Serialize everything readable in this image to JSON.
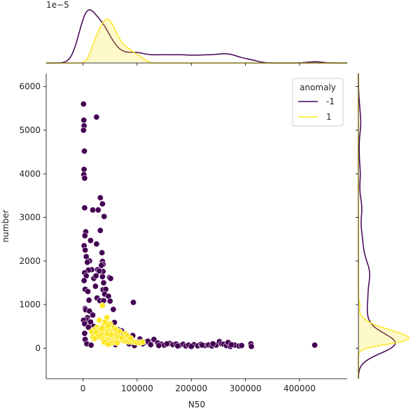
{
  "chart_data": {
    "type": "scatter",
    "title": "",
    "xlabel": "N50",
    "ylabel": "number",
    "xlim": [
      -68000,
      488000
    ],
    "ylim": [
      -700,
      6300
    ],
    "x_ticks": [
      0,
      100000,
      200000,
      300000,
      400000
    ],
    "x_tick_labels": [
      "0",
      "100000",
      "200000",
      "300000",
      "400000"
    ],
    "y_ticks": [
      0,
      1000,
      2000,
      3000,
      4000,
      5000,
      6000
    ],
    "y_tick_labels": [
      "0",
      "1000",
      "2000",
      "3000",
      "4000",
      "5000",
      "6000"
    ],
    "top_marginal_offset_label": "1e−5",
    "legend": {
      "title": "anomaly",
      "placement": "top-right",
      "entries": [
        {
          "label": "-1",
          "color": "#440154"
        },
        {
          "label": "1",
          "color": "#fde725"
        }
      ]
    },
    "series": [
      {
        "name": "-1",
        "color": "#440154",
        "points": [
          [
            1000,
            5600
          ],
          [
            1500,
            5230
          ],
          [
            2000,
            5100
          ],
          [
            1000,
            5000
          ],
          [
            25000,
            5300
          ],
          [
            2500,
            4520
          ],
          [
            2000,
            4100
          ],
          [
            1500,
            3980
          ],
          [
            3000,
            3900
          ],
          [
            32000,
            3450
          ],
          [
            36000,
            3310
          ],
          [
            3000,
            3220
          ],
          [
            18000,
            3170
          ],
          [
            28000,
            3170
          ],
          [
            39000,
            3020
          ],
          [
            32000,
            2700
          ],
          [
            5000,
            2670
          ],
          [
            3500,
            2580
          ],
          [
            2000,
            2350
          ],
          [
            4000,
            2250
          ],
          [
            14000,
            2470
          ],
          [
            25000,
            2390
          ],
          [
            6000,
            2100
          ],
          [
            12000,
            2000
          ],
          [
            8000,
            1970
          ],
          [
            36000,
            1990
          ],
          [
            35000,
            2190
          ],
          [
            37000,
            1920
          ],
          [
            34000,
            1900
          ],
          [
            16000,
            1800
          ],
          [
            10000,
            1790
          ],
          [
            27000,
            1800
          ],
          [
            37000,
            1760
          ],
          [
            30000,
            1770
          ],
          [
            20000,
            1600
          ],
          [
            24000,
            1660
          ],
          [
            36000,
            1640
          ],
          [
            38000,
            1500
          ],
          [
            49000,
            1620
          ],
          [
            51000,
            1600
          ],
          [
            3000,
            1730
          ],
          [
            6000,
            1660
          ],
          [
            2000,
            1550
          ],
          [
            4000,
            1350
          ],
          [
            9000,
            1300
          ],
          [
            23000,
            1420
          ],
          [
            37000,
            1340
          ],
          [
            42000,
            1350
          ],
          [
            40000,
            1240
          ],
          [
            47000,
            1190
          ],
          [
            50000,
            1080
          ],
          [
            56000,
            890
          ],
          [
            26000,
            1150
          ],
          [
            31000,
            1090
          ],
          [
            38000,
            1090
          ],
          [
            11000,
            1100
          ],
          [
            93000,
            1050
          ],
          [
            4000,
            910
          ],
          [
            5000,
            880
          ],
          [
            12000,
            850
          ],
          [
            18000,
            760
          ],
          [
            8000,
            700
          ],
          [
            6000,
            650
          ],
          [
            1000,
            640
          ],
          [
            14000,
            600
          ],
          [
            3000,
            560
          ],
          [
            20000,
            500
          ],
          [
            10000,
            480
          ],
          [
            58000,
            590
          ],
          [
            64000,
            430
          ],
          [
            71000,
            400
          ],
          [
            68000,
            350
          ],
          [
            92000,
            290
          ],
          [
            3000,
            340
          ],
          [
            4000,
            200
          ],
          [
            7000,
            100
          ],
          [
            15000,
            70
          ],
          [
            80000,
            270
          ],
          [
            105000,
            210
          ],
          [
            115000,
            140
          ],
          [
            120000,
            160
          ],
          [
            131000,
            200
          ],
          [
            138000,
            120
          ],
          [
            145000,
            90
          ],
          [
            150000,
            70
          ],
          [
            160000,
            110
          ],
          [
            166000,
            80
          ],
          [
            172000,
            95
          ],
          [
            178000,
            60
          ],
          [
            185000,
            90
          ],
          [
            190000,
            50
          ],
          [
            195000,
            70
          ],
          [
            205000,
            80
          ],
          [
            212000,
            55
          ],
          [
            218000,
            90
          ],
          [
            225000,
            60
          ],
          [
            232000,
            75
          ],
          [
            238000,
            50
          ],
          [
            246000,
            70
          ],
          [
            252000,
            150
          ],
          [
            256000,
            100
          ],
          [
            260000,
            90
          ],
          [
            265000,
            60
          ],
          [
            268000,
            130
          ],
          [
            272000,
            40
          ],
          [
            280000,
            70
          ],
          [
            288000,
            50
          ],
          [
            293000,
            60
          ],
          [
            310000,
            100
          ],
          [
            311000,
            40
          ],
          [
            428000,
            70
          ],
          [
            98000,
            130
          ],
          [
            102000,
            150
          ],
          [
            110000,
            100
          ],
          [
            125000,
            80
          ],
          [
            140000,
            60
          ],
          [
            155000,
            100
          ],
          [
            175000,
            50
          ],
          [
            200000,
            40
          ],
          [
            220000,
            70
          ],
          [
            240000,
            100
          ],
          [
            274000,
            80
          ],
          [
            40000,
            230
          ],
          [
            45000,
            150
          ],
          [
            52000,
            120
          ],
          [
            60000,
            80
          ],
          [
            75000,
            200
          ],
          [
            85000,
            100
          ],
          [
            95000,
            60
          ]
        ]
      },
      {
        "name": "1",
        "color": "#fde725",
        "points": [
          [
            36000,
            980
          ],
          [
            44000,
            700
          ],
          [
            30000,
            640
          ],
          [
            50000,
            560
          ],
          [
            38000,
            520
          ],
          [
            26000,
            480
          ],
          [
            20000,
            420
          ],
          [
            16000,
            380
          ],
          [
            42000,
            440
          ],
          [
            48000,
            400
          ],
          [
            55000,
            380
          ],
          [
            60000,
            350
          ],
          [
            34000,
            360
          ],
          [
            28000,
            330
          ],
          [
            22000,
            300
          ],
          [
            18000,
            260
          ],
          [
            40000,
            280
          ],
          [
            46000,
            250
          ],
          [
            52000,
            230
          ],
          [
            58000,
            200
          ],
          [
            64000,
            210
          ],
          [
            70000,
            190
          ],
          [
            75000,
            170
          ],
          [
            80000,
            160
          ],
          [
            85000,
            150
          ],
          [
            90000,
            150
          ],
          [
            95000,
            140
          ],
          [
            100000,
            130
          ],
          [
            105000,
            120
          ],
          [
            110000,
            140
          ],
          [
            33000,
            250
          ],
          [
            37000,
            220
          ],
          [
            44000,
            200
          ],
          [
            49000,
            180
          ],
          [
            54000,
            160
          ],
          [
            62000,
            300
          ],
          [
            66000,
            260
          ],
          [
            72000,
            240
          ],
          [
            30000,
            420
          ],
          [
            24000,
            360
          ],
          [
            45000,
            330
          ],
          [
            52000,
            310
          ],
          [
            41000,
            600
          ],
          [
            47000,
            520
          ],
          [
            35000,
            450
          ],
          [
            57000,
            470
          ],
          [
            61000,
            430
          ],
          [
            68000,
            380
          ],
          [
            78000,
            330
          ],
          [
            82000,
            280
          ],
          [
            88000,
            230
          ],
          [
            43000,
            160
          ],
          [
            39000,
            140
          ],
          [
            56000,
            130
          ],
          [
            63000,
            120
          ],
          [
            50000,
            100
          ],
          [
            46000,
            90
          ],
          [
            32000,
            300
          ],
          [
            27000,
            260
          ],
          [
            21000,
            220
          ]
        ]
      }
    ]
  }
}
